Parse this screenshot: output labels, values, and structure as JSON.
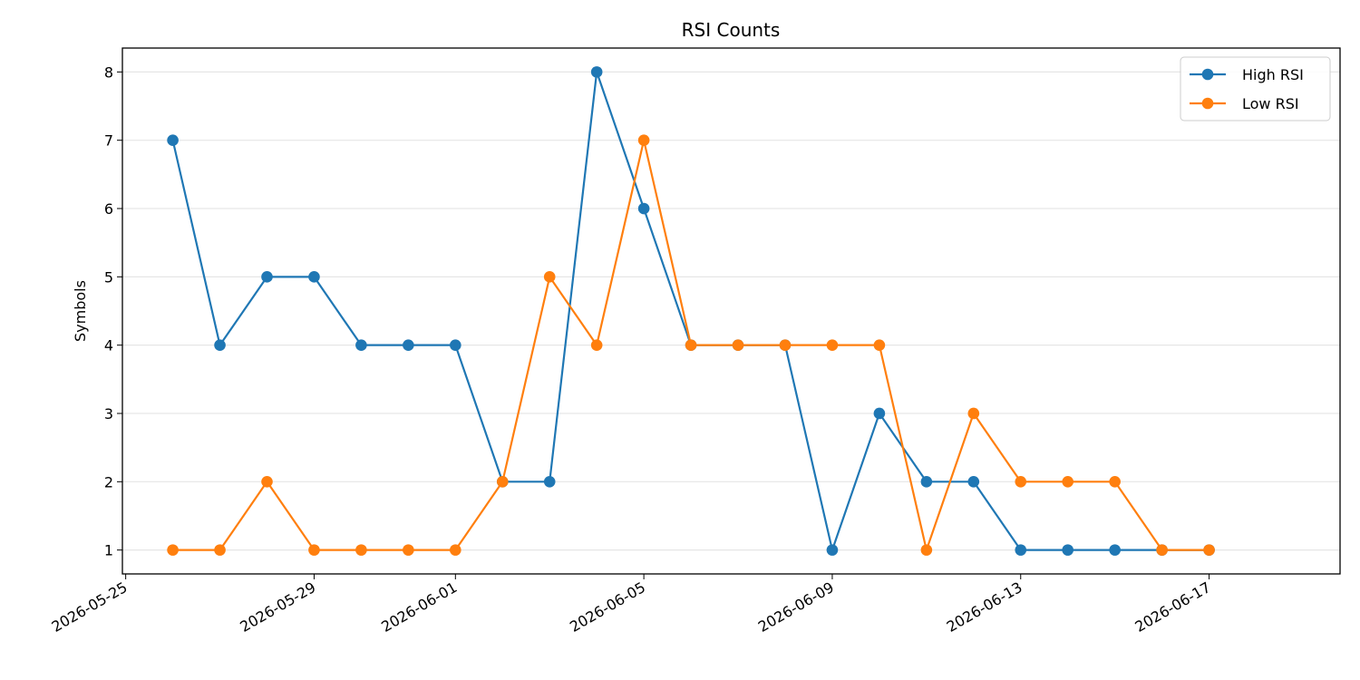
{
  "chart_data": {
    "type": "line",
    "title": "RSI Counts",
    "xlabel": "",
    "ylabel": "Symbols",
    "x": [
      "2026-05-26",
      "2026-05-27",
      "2026-05-28",
      "2026-05-29",
      "2026-05-30",
      "2026-05-31",
      "2026-06-01",
      "2026-06-02",
      "2026-06-03",
      "2026-06-04",
      "2026-06-05",
      "2026-06-06",
      "2026-06-07",
      "2026-06-08",
      "2026-06-09",
      "2026-06-10",
      "2026-06-11",
      "2026-06-12",
      "2026-06-13",
      "2026-06-14",
      "2026-06-15",
      "2026-06-16",
      "2026-06-17"
    ],
    "series": [
      {
        "name": "High RSI",
        "color": "#1f77b4",
        "values": [
          7,
          4,
          5,
          5,
          4,
          4,
          4,
          2,
          2,
          8,
          6,
          4,
          4,
          4,
          1,
          3,
          2,
          2,
          1,
          1,
          1,
          1,
          1
        ]
      },
      {
        "name": "Low RSI",
        "color": "#ff7f0e",
        "values": [
          1,
          1,
          2,
          1,
          1,
          1,
          1,
          2,
          5,
          4,
          7,
          4,
          4,
          4,
          4,
          4,
          1,
          3,
          2,
          2,
          2,
          1,
          1
        ]
      }
    ],
    "xlim": [
      "2026-05-25",
      "2026-06-17"
    ],
    "ylim": [
      0.65,
      8.35
    ],
    "x_ticks": [
      "2026-05-25",
      "2026-05-29",
      "2026-06-01",
      "2026-06-05",
      "2026-06-09",
      "2026-06-13",
      "2026-06-17"
    ],
    "y_ticks": [
      1,
      2,
      3,
      4,
      5,
      6,
      7,
      8
    ],
    "grid": "horizontal",
    "legend_position": "top-right"
  }
}
